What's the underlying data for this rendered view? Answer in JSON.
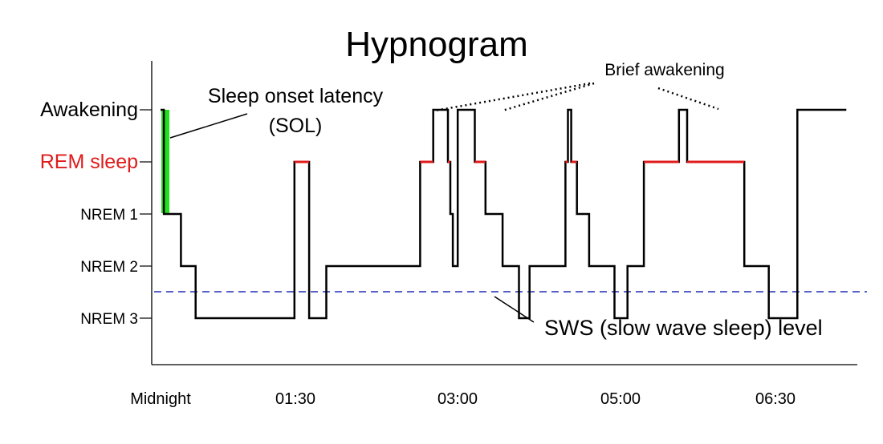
{
  "chart_data": {
    "type": "line",
    "title": "Hypnogram",
    "y_levels": [
      "NREM 3",
      "NREM 2",
      "NREM 1",
      "REM sleep",
      "Awakening"
    ],
    "x_ticks": [
      {
        "label": "Midnight",
        "x": 0
      },
      {
        "label": "01:30",
        "x": 1.5
      },
      {
        "label": "03:00",
        "x": 3.0
      },
      {
        "label": "05:00",
        "x": 5.0
      },
      {
        "label": "06:30",
        "x": 6.5
      }
    ],
    "series": [
      {
        "x": [
          0,
          0.04,
          0.04,
          0.25,
          0.25,
          0.43,
          0.43,
          1.64,
          1.64,
          1.82,
          1.82,
          2.03,
          2.03,
          3.18,
          3.18,
          3.34,
          3.34,
          3.52,
          3.52,
          3.55,
          3.55,
          3.58,
          3.58,
          3.64,
          3.64,
          3.85,
          3.85,
          3.98,
          3.98,
          4.19,
          4.19,
          4.39,
          4.39,
          4.52,
          4.52,
          4.96,
          4.96,
          4.99,
          4.99,
          5.03,
          5.03,
          5.1,
          5.1,
          5.25,
          5.25,
          5.56,
          5.56,
          5.72,
          5.72,
          5.92,
          5.92,
          6.35,
          6.35,
          6.45,
          6.45,
          7.15,
          7.15,
          7.45,
          7.45,
          7.8,
          7.8,
          8.4
        ],
        "y": [
          4,
          4,
          2,
          2,
          1,
          1,
          0,
          0,
          3,
          3,
          0,
          0,
          1,
          1,
          3,
          3,
          4,
          4,
          3,
          3,
          2,
          2,
          1,
          1,
          4,
          4,
          3,
          3,
          2,
          2,
          1,
          1,
          0,
          0,
          1,
          1,
          3,
          3,
          4,
          4,
          3,
          3,
          2,
          2,
          1,
          1,
          0,
          0,
          1,
          1,
          3,
          3,
          4,
          4,
          3,
          3,
          1,
          1,
          0,
          0,
          4,
          4
        ]
      }
    ],
    "rem_color": "#e01b1b",
    "line_color": "#000000",
    "sol_color": "#22e01b",
    "sws_color": "#1f2fb5",
    "annotations": {
      "sol_line1": "Sleep onset latency",
      "sol_line2": "(SOL)",
      "brief": "Brief awakening",
      "sws": "SWS (slow wave sleep) level"
    }
  }
}
